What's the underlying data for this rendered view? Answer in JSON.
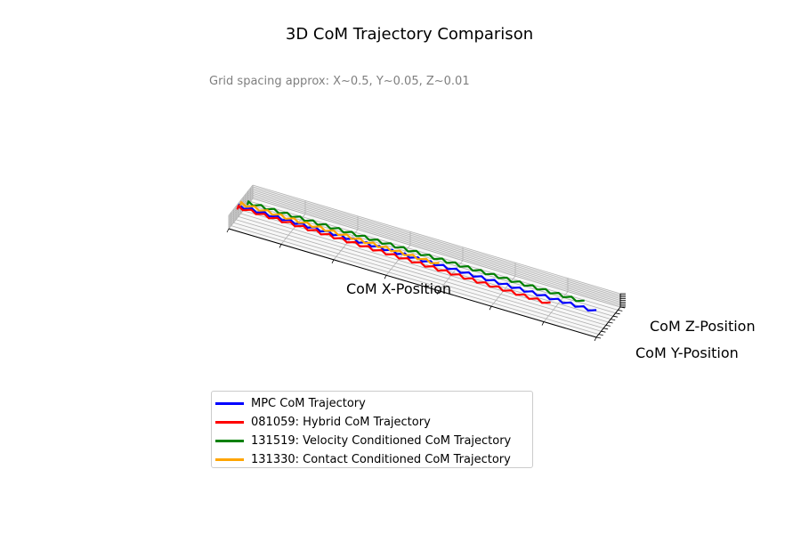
{
  "chart_data": {
    "type": "line",
    "projection": "3d",
    "title": "3D CoM Trajectory Comparison",
    "subtitle": "Grid spacing approx: X~0.5, Y~0.05, Z~0.01",
    "xlabel": "CoM X-Position",
    "ylabel": "CoM Y-Position",
    "zlabel": "CoM Z-Position",
    "grid": true,
    "legend_position": "bottom-left",
    "xlim": [
      0,
      3.5
    ],
    "ylim": [
      -0.15,
      0.35
    ],
    "zlim": [
      0.0,
      0.08
    ],
    "series": [
      {
        "name": "MPC CoM Trajectory",
        "color": "#0000ff",
        "x_start": 0.0,
        "x_end": 3.4,
        "y_center": 0.05,
        "y_drift": 0.0,
        "sway_amplitude": 0.02,
        "steps": 28,
        "z_mean": 0.065
      },
      {
        "name": "081059: Hybrid CoM Trajectory",
        "color": "#ff0000",
        "x_start": 0.0,
        "x_end": 3.0,
        "y_center": 0.03,
        "y_drift": -0.06,
        "sway_amplitude": 0.02,
        "steps": 24,
        "z_mean": 0.065
      },
      {
        "name": "131519: Velocity Conditioned CoM Trajectory",
        "color": "#008000",
        "x_start": 0.05,
        "x_end": 3.25,
        "y_center": 0.13,
        "y_drift": 0.0,
        "sway_amplitude": 0.02,
        "steps": 26,
        "z_mean": 0.065
      },
      {
        "name": "131330: Contact Conditioned CoM Trajectory",
        "color": "#ffa500",
        "x_start": 0.0,
        "x_end": 1.9,
        "y_center": 0.09,
        "y_drift": -0.03,
        "sway_amplitude": 0.02,
        "steps": 15,
        "z_mean": 0.065
      }
    ]
  }
}
